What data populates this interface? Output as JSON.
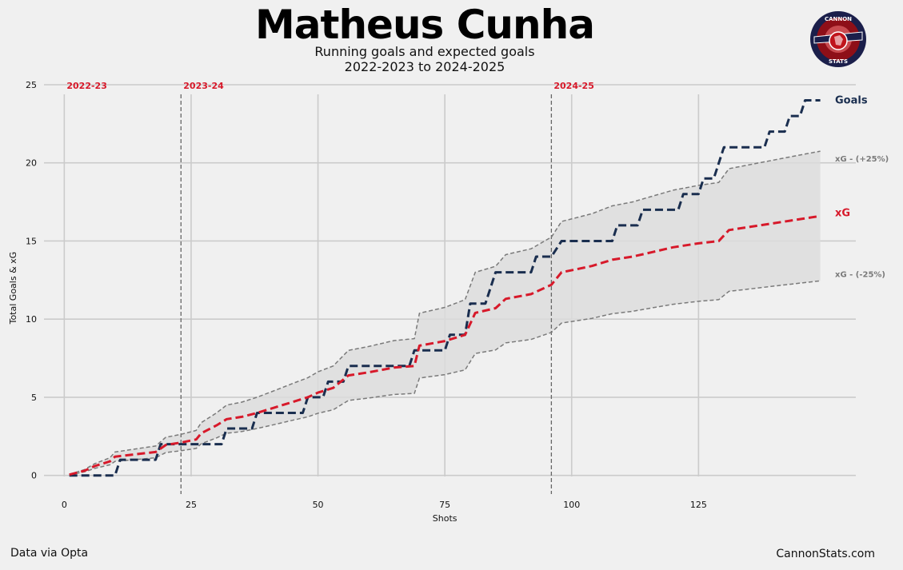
{
  "title": "Matheus Cunha",
  "subtitle_line1": "Running goals and expected goals",
  "subtitle_line2": "2022-2023 to 2024-2025",
  "footer_left": "Data via Opta",
  "footer_right": "CannonStats.com",
  "logo": {
    "top_text": "CANNON",
    "bottom_text": "STATS",
    "colors": {
      "ring": "#1b1f4b",
      "fill": "#c0141c"
    }
  },
  "colors": {
    "background": "#f0f0f0",
    "goals": "#1a2e4f",
    "xg": "#d7192a",
    "band": "#808080",
    "season": "#d7192a"
  },
  "chart_data": {
    "type": "line",
    "xlabel": "Shots",
    "ylabel": "Total Goals & xG",
    "xlim": [
      -4,
      156
    ],
    "ylim": [
      -1.5,
      25
    ],
    "xticks": [
      0,
      25,
      50,
      75,
      100,
      125
    ],
    "yticks": [
      0,
      5,
      10,
      15,
      20,
      25
    ],
    "grid": true,
    "season_markers": [
      {
        "label": "2022-23",
        "x": 0
      },
      {
        "label": "2023-24",
        "x": 23
      },
      {
        "label": "2024-25",
        "x": 96
      }
    ],
    "series": [
      {
        "name": "Goals",
        "style": "dashed",
        "points": [
          [
            1,
            0
          ],
          [
            10,
            0
          ],
          [
            11,
            1
          ],
          [
            18,
            1
          ],
          [
            19,
            2
          ],
          [
            31,
            2
          ],
          [
            32,
            3
          ],
          [
            37,
            3
          ],
          [
            38,
            4
          ],
          [
            47,
            4
          ],
          [
            48,
            5
          ],
          [
            51,
            5
          ],
          [
            52,
            6
          ],
          [
            55,
            6
          ],
          [
            56,
            7
          ],
          [
            68,
            7
          ],
          [
            69,
            8
          ],
          [
            75,
            8
          ],
          [
            76,
            9
          ],
          [
            79,
            9
          ],
          [
            80,
            11
          ],
          [
            83,
            11
          ],
          [
            85,
            13
          ],
          [
            92,
            13
          ],
          [
            93,
            14
          ],
          [
            96,
            14
          ],
          [
            98,
            15
          ],
          [
            108,
            15
          ],
          [
            109,
            16
          ],
          [
            113,
            16
          ],
          [
            114,
            17
          ],
          [
            121,
            17
          ],
          [
            122,
            18
          ],
          [
            125,
            18
          ],
          [
            126,
            19
          ],
          [
            128,
            19
          ],
          [
            130,
            21
          ],
          [
            138,
            21
          ],
          [
            139,
            22
          ],
          [
            142,
            22
          ],
          [
            143,
            23
          ],
          [
            145,
            23
          ],
          [
            146,
            24
          ],
          [
            149,
            24
          ]
        ]
      },
      {
        "name": "xG",
        "style": "dashed",
        "points": [
          [
            1,
            0.05
          ],
          [
            4,
            0.3
          ],
          [
            6,
            0.6
          ],
          [
            9,
            0.9
          ],
          [
            10,
            1.2
          ],
          [
            14,
            1.35
          ],
          [
            18,
            1.5
          ],
          [
            20,
            1.95
          ],
          [
            23,
            2.1
          ],
          [
            26,
            2.3
          ],
          [
            27,
            2.7
          ],
          [
            30,
            3.2
          ],
          [
            32,
            3.6
          ],
          [
            35,
            3.75
          ],
          [
            38,
            4.0
          ],
          [
            42,
            4.4
          ],
          [
            45,
            4.7
          ],
          [
            48,
            5.0
          ],
          [
            50,
            5.3
          ],
          [
            53,
            5.6
          ],
          [
            56,
            6.4
          ],
          [
            60,
            6.6
          ],
          [
            65,
            6.9
          ],
          [
            69,
            7.0
          ],
          [
            70,
            8.3
          ],
          [
            75,
            8.6
          ],
          [
            79,
            9.0
          ],
          [
            81,
            10.4
          ],
          [
            85,
            10.7
          ],
          [
            87,
            11.3
          ],
          [
            92,
            11.6
          ],
          [
            96,
            12.2
          ],
          [
            98,
            13.0
          ],
          [
            101,
            13.2
          ],
          [
            104,
            13.4
          ],
          [
            108,
            13.8
          ],
          [
            112,
            14.0
          ],
          [
            116,
            14.3
          ],
          [
            120,
            14.6
          ],
          [
            125,
            14.85
          ],
          [
            129,
            15.0
          ],
          [
            131,
            15.7
          ],
          [
            135,
            15.9
          ],
          [
            139,
            16.1
          ],
          [
            143,
            16.3
          ],
          [
            149,
            16.6
          ]
        ]
      },
      {
        "name": "xG - (+25%)",
        "style": "dashed",
        "points": [
          [
            1,
            0.06
          ],
          [
            4,
            0.38
          ],
          [
            6,
            0.75
          ],
          [
            9,
            1.13
          ],
          [
            10,
            1.5
          ],
          [
            14,
            1.69
          ],
          [
            18,
            1.88
          ],
          [
            20,
            2.44
          ],
          [
            23,
            2.63
          ],
          [
            26,
            2.88
          ],
          [
            27,
            3.38
          ],
          [
            30,
            4.0
          ],
          [
            32,
            4.5
          ],
          [
            35,
            4.69
          ],
          [
            38,
            5.0
          ],
          [
            42,
            5.5
          ],
          [
            45,
            5.88
          ],
          [
            48,
            6.25
          ],
          [
            50,
            6.63
          ],
          [
            53,
            7.0
          ],
          [
            56,
            8.0
          ],
          [
            60,
            8.25
          ],
          [
            65,
            8.63
          ],
          [
            69,
            8.75
          ],
          [
            70,
            10.38
          ],
          [
            75,
            10.75
          ],
          [
            79,
            11.25
          ],
          [
            81,
            13.0
          ],
          [
            85,
            13.38
          ],
          [
            87,
            14.13
          ],
          [
            92,
            14.5
          ],
          [
            96,
            15.25
          ],
          [
            98,
            16.25
          ],
          [
            101,
            16.5
          ],
          [
            104,
            16.75
          ],
          [
            108,
            17.25
          ],
          [
            112,
            17.5
          ],
          [
            116,
            17.88
          ],
          [
            120,
            18.25
          ],
          [
            125,
            18.56
          ],
          [
            129,
            18.75
          ],
          [
            131,
            19.63
          ],
          [
            135,
            19.88
          ],
          [
            139,
            20.13
          ],
          [
            143,
            20.38
          ],
          [
            149,
            20.75
          ]
        ]
      },
      {
        "name": "xG - (-25%)",
        "style": "dashed",
        "points": [
          [
            1,
            0.04
          ],
          [
            4,
            0.23
          ],
          [
            6,
            0.45
          ],
          [
            9,
            0.68
          ],
          [
            10,
            0.9
          ],
          [
            14,
            1.01
          ],
          [
            18,
            1.13
          ],
          [
            20,
            1.46
          ],
          [
            23,
            1.58
          ],
          [
            26,
            1.73
          ],
          [
            27,
            2.03
          ],
          [
            30,
            2.4
          ],
          [
            32,
            2.7
          ],
          [
            35,
            2.81
          ],
          [
            38,
            3.0
          ],
          [
            42,
            3.3
          ],
          [
            45,
            3.53
          ],
          [
            48,
            3.75
          ],
          [
            50,
            3.98
          ],
          [
            53,
            4.2
          ],
          [
            56,
            4.8
          ],
          [
            60,
            4.95
          ],
          [
            65,
            5.18
          ],
          [
            69,
            5.25
          ],
          [
            70,
            6.23
          ],
          [
            75,
            6.45
          ],
          [
            79,
            6.75
          ],
          [
            81,
            7.8
          ],
          [
            85,
            8.03
          ],
          [
            87,
            8.48
          ],
          [
            92,
            8.7
          ],
          [
            96,
            9.15
          ],
          [
            98,
            9.75
          ],
          [
            101,
            9.9
          ],
          [
            104,
            10.05
          ],
          [
            108,
            10.35
          ],
          [
            112,
            10.5
          ],
          [
            116,
            10.73
          ],
          [
            120,
            10.95
          ],
          [
            125,
            11.14
          ],
          [
            129,
            11.25
          ],
          [
            131,
            11.78
          ],
          [
            135,
            11.93
          ],
          [
            139,
            12.08
          ],
          [
            143,
            12.23
          ],
          [
            149,
            12.45
          ]
        ]
      }
    ],
    "legend": [
      {
        "label": "Goals",
        "y": 24,
        "series": "Goals"
      },
      {
        "label": "xG - (+25%)",
        "y": 20.3,
        "series": "xG - (+25%)"
      },
      {
        "label": "xG",
        "y": 16.8,
        "series": "xG"
      },
      {
        "label": "xG - (-25%)",
        "y": 12.9,
        "series": "xG - (-25%)"
      }
    ]
  }
}
